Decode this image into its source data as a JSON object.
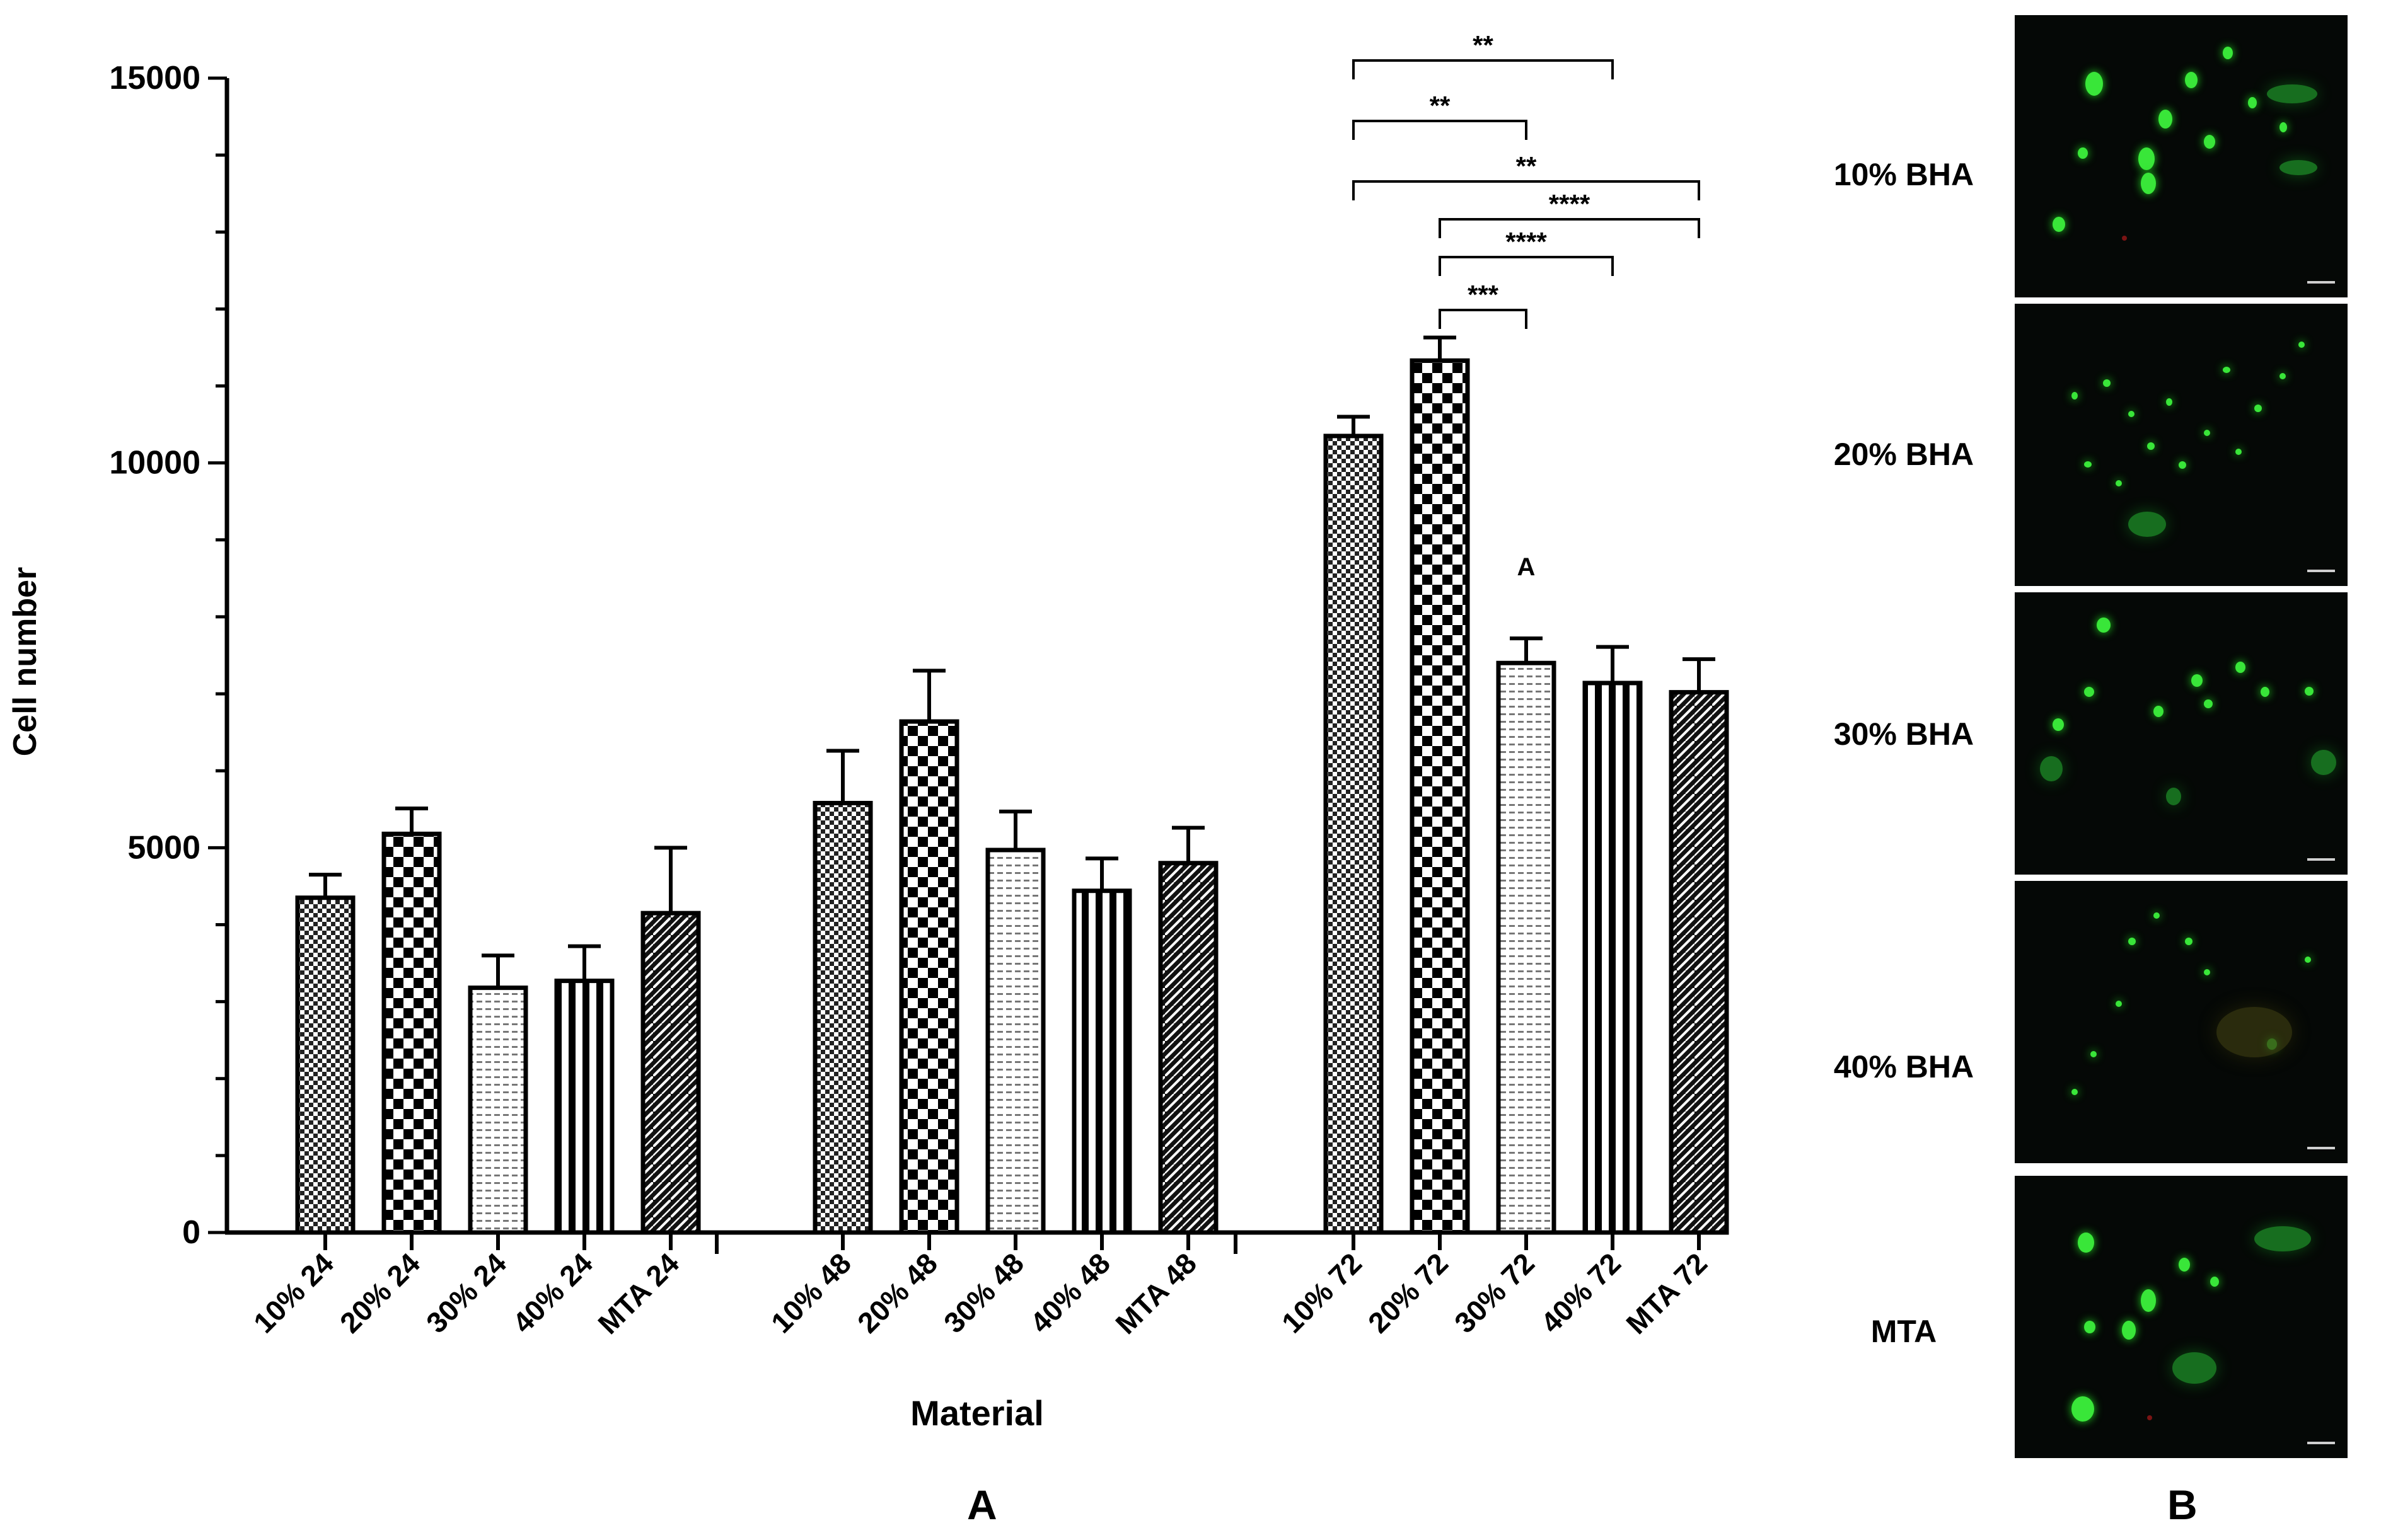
{
  "chart_data": {
    "type": "bar",
    "title": "",
    "xlabel": "Material",
    "ylabel": "Cell number",
    "ylim": [
      0,
      15000
    ],
    "yticks": [
      0,
      5000,
      10000,
      15000
    ],
    "grid": false,
    "legend": "none",
    "groups": [
      {
        "name": "24",
        "bars": [
          {
            "label": "10% 24",
            "value": 4350,
            "error": 300,
            "pattern": "fine-check"
          },
          {
            "label": "20%  24",
            "value": 5180,
            "error": 330,
            "pattern": "checker"
          },
          {
            "label": "30% 24",
            "value": 3180,
            "error": 420,
            "pattern": "light-dash"
          },
          {
            "label": "40% 24",
            "value": 3270,
            "error": 450,
            "pattern": "vstripe"
          },
          {
            "label": "MTA 24",
            "value": 4150,
            "error": 850,
            "pattern": "brick"
          }
        ]
      },
      {
        "name": "48",
        "bars": [
          {
            "label": "10% 48",
            "value": 5580,
            "error": 680,
            "pattern": "fine-check"
          },
          {
            "label": "20% 48",
            "value": 6640,
            "error": 660,
            "pattern": "checker"
          },
          {
            "label": "30% 48",
            "value": 4970,
            "error": 500,
            "pattern": "light-dash"
          },
          {
            "label": "40% 48",
            "value": 4440,
            "error": 420,
            "pattern": "vstripe"
          },
          {
            "label": "MTA 48",
            "value": 4800,
            "error": 460,
            "pattern": "brick"
          }
        ]
      },
      {
        "name": "72",
        "bars": [
          {
            "label": "10% 72",
            "value": 10350,
            "error": 250,
            "pattern": "fine-check"
          },
          {
            "label": "20% 72",
            "value": 11330,
            "error": 300,
            "pattern": "checker"
          },
          {
            "label": "30% 72",
            "value": 7400,
            "error": 320,
            "pattern": "light-dash"
          },
          {
            "label": "40% 72",
            "value": 7140,
            "error": 470,
            "pattern": "vstripe"
          },
          {
            "label": "MTA 72",
            "value": 7020,
            "error": 430,
            "pattern": "brick"
          }
        ]
      }
    ],
    "significance": [
      {
        "from": "10% 72",
        "to": "40% 72",
        "text": "**"
      },
      {
        "from": "10% 72",
        "to": "30% 72",
        "text": "**"
      },
      {
        "from": "10% 72",
        "to": "MTA 72",
        "text": "**"
      },
      {
        "from": "20% 72",
        "to": "MTA 72",
        "text": "****"
      },
      {
        "from": "20% 72",
        "to": "40% 72",
        "text": "****"
      },
      {
        "from": "20% 72",
        "to": "30% 72",
        "text": "***"
      }
    ],
    "annotations": [
      {
        "bar": "30% 72",
        "text": "A"
      }
    ]
  },
  "panels": {
    "a": "A",
    "b": "B"
  },
  "micrographs": [
    {
      "label": "10% BHA"
    },
    {
      "label": "20% BHA"
    },
    {
      "label": "30% BHA"
    },
    {
      "label": "40% BHA"
    },
    {
      "label": "MTA"
    }
  ]
}
